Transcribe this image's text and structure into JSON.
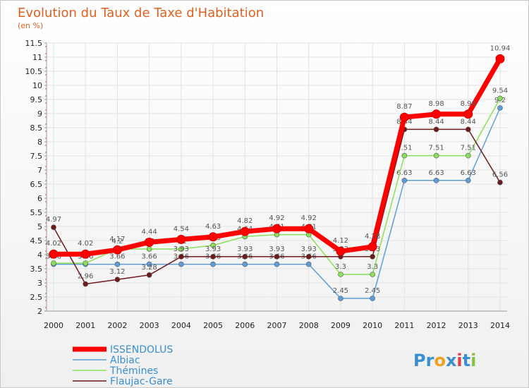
{
  "chart_data": {
    "type": "line",
    "title": "Evolution du Taux de Taxe d'Habitation",
    "subtitle": "(en %)",
    "x": [
      "2000",
      "2001",
      "2002",
      "2003",
      "2004",
      "2005",
      "2006",
      "2007",
      "2008",
      "2009",
      "2010",
      "2011",
      "2012",
      "2013",
      "2014"
    ],
    "ylim": [
      2,
      11.5
    ],
    "yticks": [
      "2",
      "2.5",
      "3",
      "3.5",
      "4",
      "4.5",
      "5",
      "5.5",
      "6",
      "6.5",
      "7",
      "7.5",
      "8",
      "8.5",
      "9",
      "9.5",
      "10",
      "10.5",
      "11",
      "11.5"
    ],
    "grid": true,
    "legend_position": "bottom-left",
    "series": [
      {
        "name": "ISSENDOLUS",
        "color": "#ff0000",
        "labels": true,
        "values": [
          4.02,
          4.02,
          4.17,
          4.44,
          4.54,
          4.63,
          4.82,
          4.92,
          4.92,
          4.12,
          4.28,
          8.87,
          8.98,
          8.98,
          10.94
        ],
        "label_text": [
          "4.02",
          "4.02",
          "4.17",
          "4.44",
          "4.54",
          "4.63",
          "4.82",
          "4.92",
          "4.92",
          "4.12",
          "4.28",
          "8.87",
          "8.98",
          "8.98",
          "10.94"
        ]
      },
      {
        "name": "Albiac",
        "color": "#5e9dd6",
        "labels": true,
        "values": [
          3.66,
          3.66,
          3.66,
          3.66,
          3.66,
          3.66,
          3.66,
          3.66,
          3.66,
          2.45,
          2.45,
          6.63,
          6.63,
          6.63,
          9.2
        ],
        "label_text": [
          "3.66",
          "3.66",
          "3.66",
          "3.66",
          "3.66",
          "3.66",
          "3.66",
          "3.66",
          "3.66",
          "2.45",
          "2.45",
          "6.63",
          "6.63",
          "6.63",
          "9.2"
        ]
      },
      {
        "name": "Thémines",
        "color": "#8ae05a",
        "labels": true,
        "values": [
          3.7,
          3.7,
          4.2,
          4.2,
          4.2,
          4.33,
          4.64,
          4.71,
          4.71,
          3.3,
          3.3,
          7.51,
          7.51,
          7.51,
          9.54
        ],
        "label_text": [
          "3.7",
          "3.7",
          "4.2",
          "4.2",
          "4.2",
          "4.33",
          "4.64",
          "4.71",
          "4.71",
          "3.3",
          "3.3",
          "7.51",
          "7.51",
          "7.51",
          "9.54"
        ]
      },
      {
        "name": "Flaujac-Gare",
        "color": "#6e1a1a",
        "labels": true,
        "values": [
          4.97,
          2.96,
          3.12,
          3.28,
          3.93,
          3.93,
          3.93,
          3.93,
          3.93,
          3.93,
          3.93,
          8.44,
          8.44,
          8.44,
          6.56
        ],
        "label_text": [
          "4.97",
          "2.96",
          "3.12",
          "3.28",
          "3.93",
          "3.93",
          "3.93",
          "3.93",
          "3.93",
          "3.93",
          "3.93",
          "8.44",
          "8.44",
          "8.44",
          "6.56"
        ]
      }
    ]
  },
  "brand": {
    "p": "Pr",
    "o": "o",
    "x": "x",
    "i": "i",
    "t": "t",
    "i2": "i"
  }
}
